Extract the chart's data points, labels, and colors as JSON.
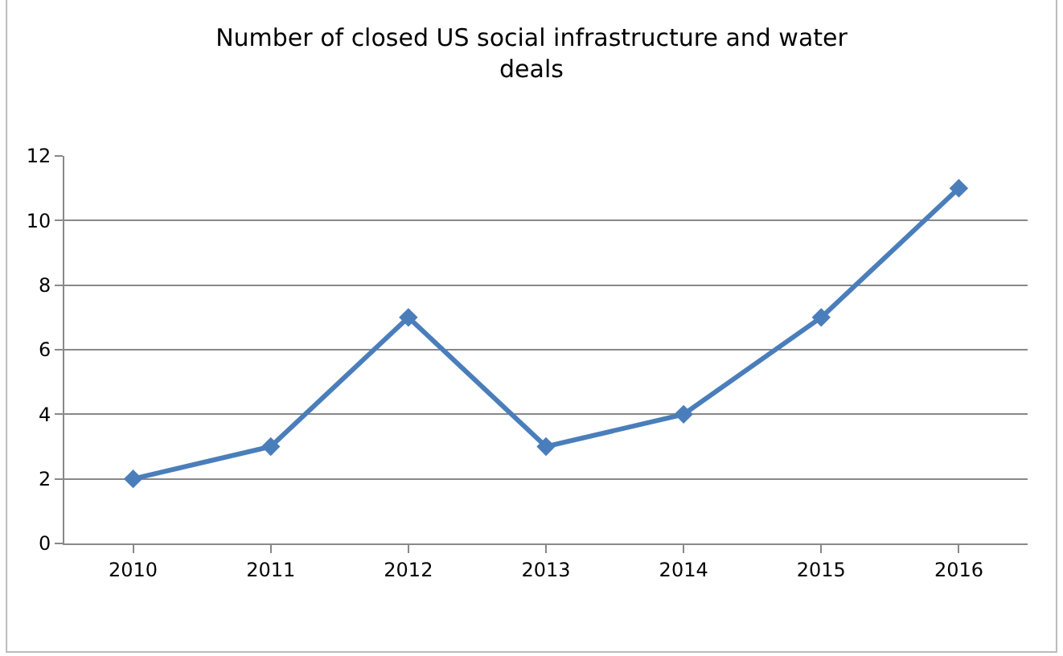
{
  "chart_data": {
    "type": "line",
    "title": "Number of closed US social infrastructure and water\ndeals",
    "categories": [
      "2010",
      "2011",
      "2012",
      "2013",
      "2014",
      "2015",
      "2016"
    ],
    "series": [
      {
        "color": "#4a7ebb",
        "values": [
          2,
          3,
          7,
          3,
          4,
          7,
          11
        ]
      }
    ],
    "ylim": [
      0,
      12
    ],
    "yticks": [
      0,
      2,
      4,
      6,
      8,
      10,
      12
    ],
    "grid": "y",
    "marker": "diamond",
    "line_style": "solid"
  }
}
